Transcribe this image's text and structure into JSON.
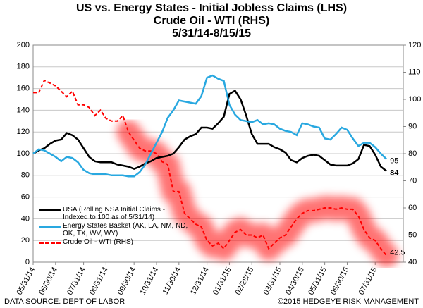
{
  "chart_data": {
    "type": "line",
    "title": [
      "US vs. Energy States - Initial Jobless Claims (LHS)",
      "Crude Oil - WTI (RHS)",
      "5/31/14-8/15/15"
    ],
    "categories": [
      "05/31/14",
      null,
      null,
      null,
      "06/30/14",
      null,
      null,
      null,
      null,
      "07/31/14",
      null,
      null,
      null,
      "08/31/14",
      null,
      null,
      null,
      null,
      "09/30/14",
      null,
      null,
      null,
      "10/31/14",
      null,
      null,
      null,
      "11/30/14",
      null,
      null,
      null,
      null,
      "12/31/14",
      null,
      null,
      null,
      "01/31/15",
      null,
      null,
      null,
      "02/28/15",
      null,
      null,
      null,
      null,
      "03/31/15",
      null,
      null,
      null,
      "04/30/15",
      null,
      null,
      null,
      "05/31/15",
      null,
      null,
      null,
      "06/30/15",
      null,
      null,
      null,
      null,
      "07/31/15",
      null,
      null
    ],
    "series": [
      {
        "name": "USA (Rolling NSA Initial Claims -\nIndexed to 100 as of 5/31/14)",
        "color": "#000000",
        "dash": false,
        "values": [
          100,
          103,
          105,
          109,
          112,
          113,
          119,
          117,
          113,
          105,
          97,
          93,
          92,
          92,
          92,
          90,
          89,
          88,
          86,
          88,
          91,
          93,
          96,
          97,
          98,
          100,
          106,
          113,
          116,
          118,
          124,
          124,
          123,
          128,
          134,
          155,
          158,
          150,
          135,
          118,
          109,
          109,
          109,
          106,
          104,
          101,
          94,
          92,
          96,
          98,
          99,
          98,
          94,
          90,
          89,
          89,
          89,
          91,
          95,
          108,
          107,
          99,
          88,
          84
        ],
        "value_labels": [
          null,
          null,
          null,
          null,
          null,
          null,
          null,
          null,
          null,
          null,
          null,
          null,
          null,
          null,
          null,
          null,
          null,
          null,
          null,
          null,
          null,
          null,
          null,
          null,
          null,
          null,
          null,
          null,
          null,
          null,
          null,
          null,
          null,
          null,
          null,
          null,
          null,
          null,
          null,
          null,
          null,
          null,
          null,
          null,
          null,
          null,
          null,
          null,
          null,
          null,
          null,
          null,
          null,
          null,
          null,
          null,
          null,
          null,
          null,
          null,
          null,
          null,
          null,
          "84"
        ]
      },
      {
        "name": "Energy States Basket (AK, LA, NM, ND,\nOK, TX, WV, WY)",
        "color": "#29a8e0",
        "dash": false,
        "values": [
          100,
          104,
          103,
          100,
          97,
          93,
          97,
          96,
          92,
          85,
          82,
          81,
          81,
          81,
          80,
          80,
          80,
          79,
          79,
          83,
          90,
          100,
          110,
          120,
          133,
          140,
          149,
          148,
          147,
          146,
          153,
          170,
          172,
          169,
          167,
          145,
          136,
          131,
          130,
          129,
          131,
          127,
          128,
          127,
          123,
          121,
          120,
          117,
          128,
          127,
          125,
          124,
          114,
          113,
          118,
          124,
          122,
          114,
          107,
          110,
          110,
          106,
          100,
          95
        ],
        "value_labels": [
          null,
          null,
          null,
          null,
          null,
          null,
          null,
          null,
          null,
          null,
          null,
          null,
          null,
          null,
          null,
          null,
          null,
          null,
          null,
          null,
          null,
          null,
          null,
          null,
          null,
          null,
          null,
          null,
          null,
          null,
          null,
          null,
          null,
          null,
          null,
          null,
          null,
          null,
          null,
          null,
          null,
          null,
          null,
          null,
          null,
          null,
          null,
          null,
          null,
          null,
          null,
          null,
          null,
          null,
          null,
          null,
          null,
          null,
          null,
          null,
          null,
          null,
          null,
          "95"
        ]
      },
      {
        "name": "Crude Oil - WTI (RHS)",
        "color": "#ff0000",
        "dash": true,
        "axis": "y2",
        "values": [
          102.5,
          102.5,
          107,
          106,
          105,
          103,
          101,
          103,
          98,
          98,
          97,
          94,
          96,
          93,
          92,
          92,
          94,
          88,
          85,
          82,
          81,
          81,
          80,
          77,
          76,
          66,
          66,
          58,
          56,
          54,
          53,
          48,
          46,
          47,
          45,
          48,
          51,
          52,
          50,
          50,
          49,
          50,
          45,
          47,
          49,
          50,
          53,
          56,
          58,
          59,
          59,
          59.5,
          60,
          60,
          59.5,
          60,
          59.5,
          59.5,
          57,
          52,
          49,
          48,
          45,
          42.5
        ],
        "value_labels": [
          null,
          null,
          null,
          null,
          null,
          null,
          null,
          null,
          null,
          null,
          null,
          null,
          null,
          null,
          null,
          null,
          null,
          null,
          null,
          null,
          null,
          null,
          null,
          null,
          null,
          null,
          null,
          null,
          null,
          null,
          null,
          null,
          null,
          null,
          null,
          null,
          null,
          null,
          null,
          null,
          null,
          null,
          null,
          null,
          null,
          null,
          null,
          null,
          null,
          null,
          null,
          null,
          null,
          null,
          null,
          null,
          null,
          null,
          null,
          null,
          null,
          null,
          null,
          "42.5"
        ]
      }
    ],
    "ylim": [
      0,
      200
    ],
    "yticks": [
      0,
      20,
      40,
      60,
      80,
      100,
      120,
      140,
      160,
      180,
      200
    ],
    "y2lim": [
      40,
      120
    ],
    "y2ticks": [
      40,
      50,
      60,
      70,
      80,
      90,
      100,
      110,
      120
    ],
    "y2color": "#ff0000",
    "grid": true,
    "source": "DATA SOURCE: DEPT OF LABOR",
    "copyright": "©2015 HEDGEYE RISK MANAGEMENT"
  }
}
